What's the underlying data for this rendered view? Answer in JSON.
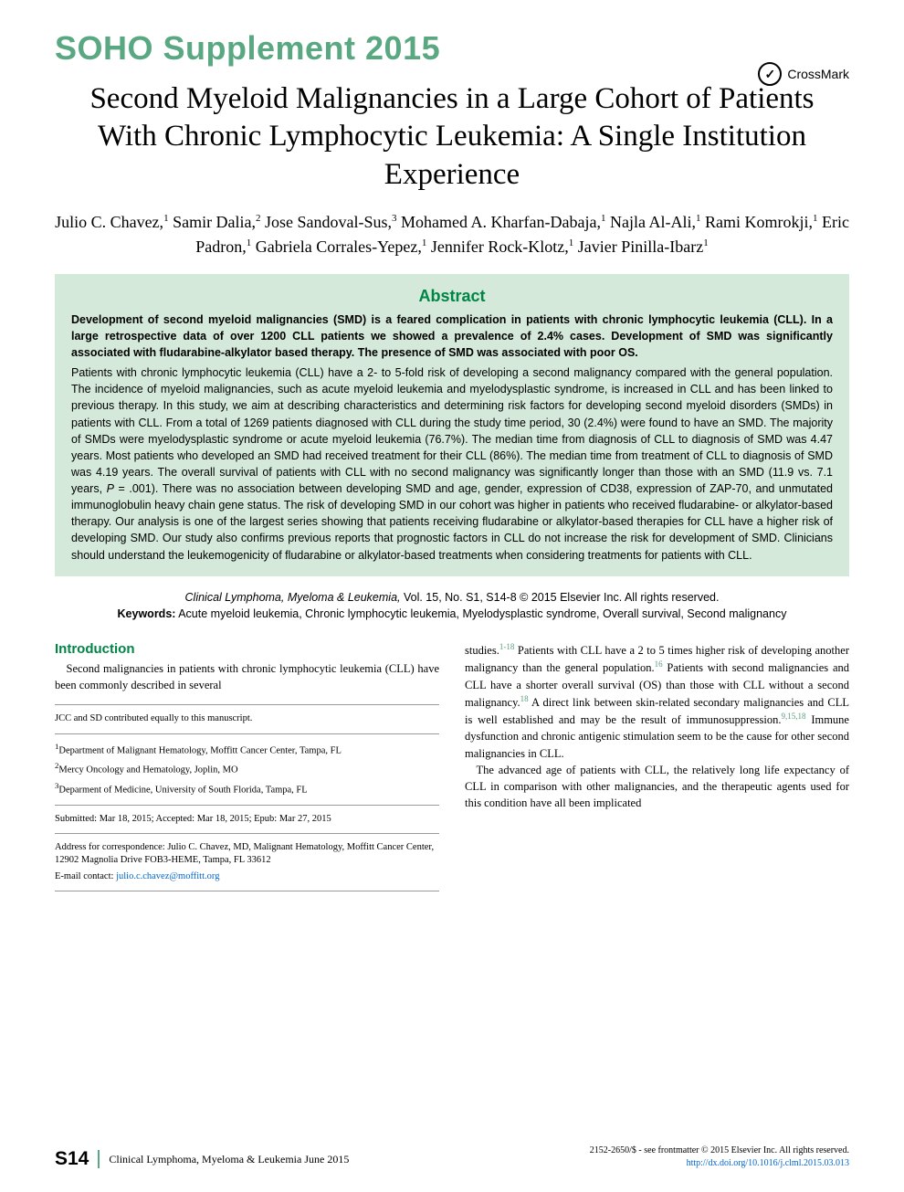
{
  "supplement": "SOHO Supplement 2015",
  "crossmark": {
    "label": "CrossMark",
    "glyph": "✓"
  },
  "title": "Second Myeloid Malignancies in a Large Cohort of Patients With Chronic Lymphocytic Leukemia: A Single Institution Experience",
  "authors_html": "Julio C. Chavez,<sup>1</sup> Samir Dalia,<sup>2</sup> Jose Sandoval-Sus,<sup>3</sup> Mohamed A. Kharfan-Dabaja,<sup>1</sup> Najla Al-Ali,<sup>1</sup> Rami Komrokji,<sup>1</sup> Eric Padron,<sup>1</sup> Gabriela Corrales-Yepez,<sup>1</sup> Jennifer Rock-Klotz,<sup>1</sup> Javier Pinilla-Ibarz<sup>1</sup>",
  "abstract": {
    "heading": "Abstract",
    "bold": "Development of second myeloid malignancies (SMD) is a feared complication in patients with chronic lymphocytic leukemia (CLL). In a large retrospective data of over 1200 CLL patients we showed a prevalence of 2.4% cases. Development of SMD was significantly associated with fludarabine-alkylator based therapy. The presence of SMD was associated with poor OS.",
    "body": "Patients with chronic lymphocytic leukemia (CLL) have a 2- to 5-fold risk of developing a second malignancy compared with the general population. The incidence of myeloid malignancies, such as acute myeloid leukemia and myelodysplastic syndrome, is increased in CLL and has been linked to previous therapy. In this study, we aim at describing characteristics and determining risk factors for developing second myeloid disorders (SMDs) in patients with CLL. From a total of 1269 patients diagnosed with CLL during the study time period, 30 (2.4%) were found to have an SMD. The majority of SMDs were myelodysplastic syndrome or acute myeloid leukemia (76.7%). The median time from diagnosis of CLL to diagnosis of SMD was 4.47 years. Most patients who developed an SMD had received treatment for their CLL (86%). The median time from treatment of CLL to diagnosis of SMD was 4.19 years. The overall survival of patients with CLL with no second malignancy was significantly longer than those with an SMD (11.9 vs. 7.1 years, <span class=\"ital\">P</span> = .001). There was no association between developing SMD and age, gender, expression of CD38, expression of ZAP-70, and unmutated immunoglobulin heavy chain gene status. The risk of developing SMD in our cohort was higher in patients who received fludarabine- or alkylator-based therapy. Our analysis is one of the largest series showing that patients receiving fludarabine or alkylator-based therapies for CLL have a higher risk of developing SMD. Our study also confirms previous reports that prognostic factors in CLL do not increase the risk for development of SMD. Clinicians should understand the leukemogenicity of fludarabine or alkylator-based treatments when considering treatments for patients with CLL."
  },
  "citation": {
    "journal": "Clinical Lymphoma, Myeloma & Leukemia,",
    "vol": " Vol. 15, No. S1, S14-8 © 2015 Elsevier Inc. All rights reserved.",
    "kw_label": "Keywords:",
    "keywords": " Acute myeloid leukemia, Chronic lymphocytic leukemia, Myelodysplastic syndrome, Overall survival, Second malignancy"
  },
  "intro": {
    "heading": "Introduction",
    "left_para": "Second malignancies in patients with chronic lymphocytic leukemia (CLL) have been commonly described in several",
    "right_p1_a": "studies.",
    "right_p1_ref1": "1-18",
    "right_p1_b": " Patients with CLL have a 2 to 5 times higher risk of developing another malignancy than the general population.",
    "right_p1_ref2": "16",
    "right_p1_c": " Patients with second malignancies and CLL have a shorter overall survival (OS) than those with CLL without a second malignancy.",
    "right_p1_ref3": "18",
    "right_p1_d": " A direct link between skin-related secondary malignancies and CLL is well established and may be the result of immunosuppression.",
    "right_p1_ref4": "9,15,18",
    "right_p1_e": " Immune dysfunction and chronic antigenic stimulation seem to be the cause for other second malignancies in CLL.",
    "right_p2": "The advanced age of patients with CLL, the relatively long life expectancy of CLL in comparison with other malignancies, and the therapeutic agents used for this condition have all been implicated"
  },
  "footnotes": {
    "contrib": "JCC and SD contributed equally to this manuscript.",
    "aff1": "Department of Malignant Hematology, Moffitt Cancer Center, Tampa, FL",
    "aff2": "Mercy Oncology and Hematology, Joplin, MO",
    "aff3": "Deparment of Medicine, University of South Florida, Tampa, FL",
    "dates": "Submitted: Mar 18, 2015; Accepted: Mar 18, 2015; Epub: Mar 27, 2015",
    "corr": "Address for correspondence: Julio C. Chavez, MD, Malignant Hematology, Moffitt Cancer Center, 12902 Magnolia Drive FOB3-HEME, Tampa, FL 33612",
    "email_label": "E-mail contact: ",
    "email": "julio.c.chavez@moffitt.org"
  },
  "footer": {
    "page": "S14",
    "journal": "Clinical Lymphoma, Myeloma & Leukemia",
    "date": "  June 2015",
    "right1": "2152-2650/$ - see frontmatter © 2015 Elsevier Inc. All rights reserved.",
    "doi": "http://dx.doi.org/10.1016/j.clml.2015.03.013"
  },
  "colors": {
    "accent": "#5aa882",
    "heading_green": "#008546",
    "abstract_bg": "#d4e9da",
    "link": "#0066cc"
  }
}
